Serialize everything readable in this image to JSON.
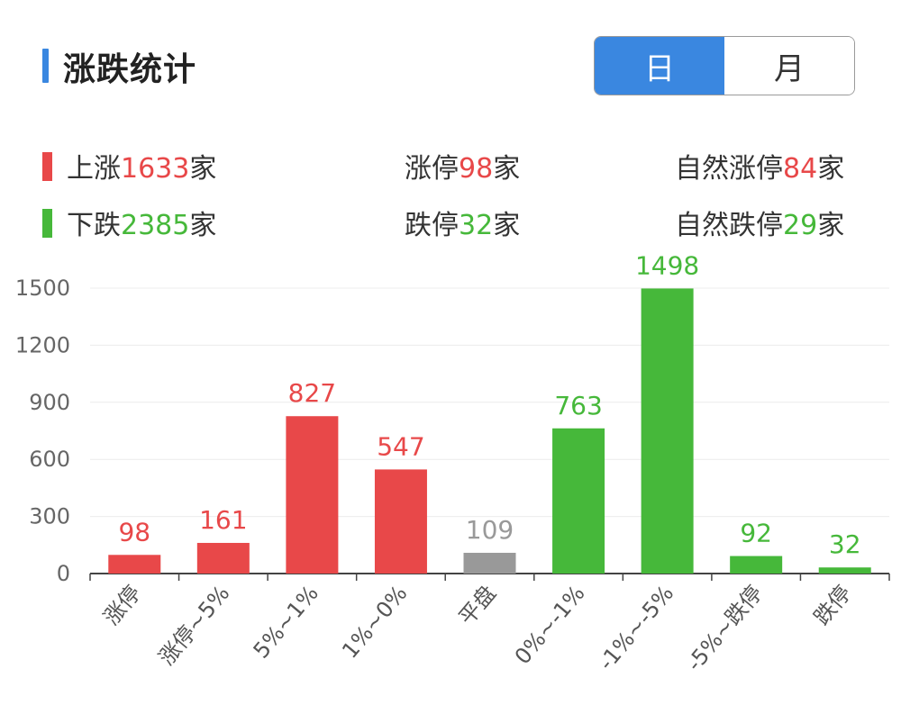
{
  "header": {
    "title": "涨跌统计",
    "tabs": [
      {
        "label": "日",
        "active": true
      },
      {
        "label": "月",
        "active": false
      }
    ]
  },
  "stats": {
    "up": {
      "prefix": "上涨",
      "value": "1633",
      "suffix": "家"
    },
    "limit_up": {
      "prefix": "涨停",
      "value": "98",
      "suffix": "家"
    },
    "natural_limit_up": {
      "prefix": "自然涨停",
      "value": "84",
      "suffix": "家"
    },
    "down": {
      "prefix": "下跌",
      "value": "2385",
      "suffix": "家"
    },
    "limit_down": {
      "prefix": "跌停",
      "value": "32",
      "suffix": "家"
    },
    "natural_limit_down": {
      "prefix": "自然跌停",
      "value": "29",
      "suffix": "家"
    }
  },
  "colors": {
    "accent": "#3a87e0",
    "red": "#e84849",
    "green": "#46b83a",
    "gray": "#999999"
  },
  "chart_data": {
    "type": "bar",
    "categories": [
      "涨停",
      "涨停~5%",
      "5%~1%",
      "1%~0%",
      "平盘",
      "0%~-1%",
      "-1%~-5%",
      "-5%~跌停",
      "跌停"
    ],
    "values": [
      98,
      161,
      827,
      547,
      109,
      763,
      1498,
      92,
      32
    ],
    "bar_colors": [
      "#e84849",
      "#e84849",
      "#e84849",
      "#e84849",
      "#999999",
      "#46b83a",
      "#46b83a",
      "#46b83a",
      "#46b83a"
    ],
    "yticks": [
      0,
      300,
      600,
      900,
      1200,
      1500
    ],
    "ylim": [
      0,
      1500
    ],
    "grid": true
  }
}
